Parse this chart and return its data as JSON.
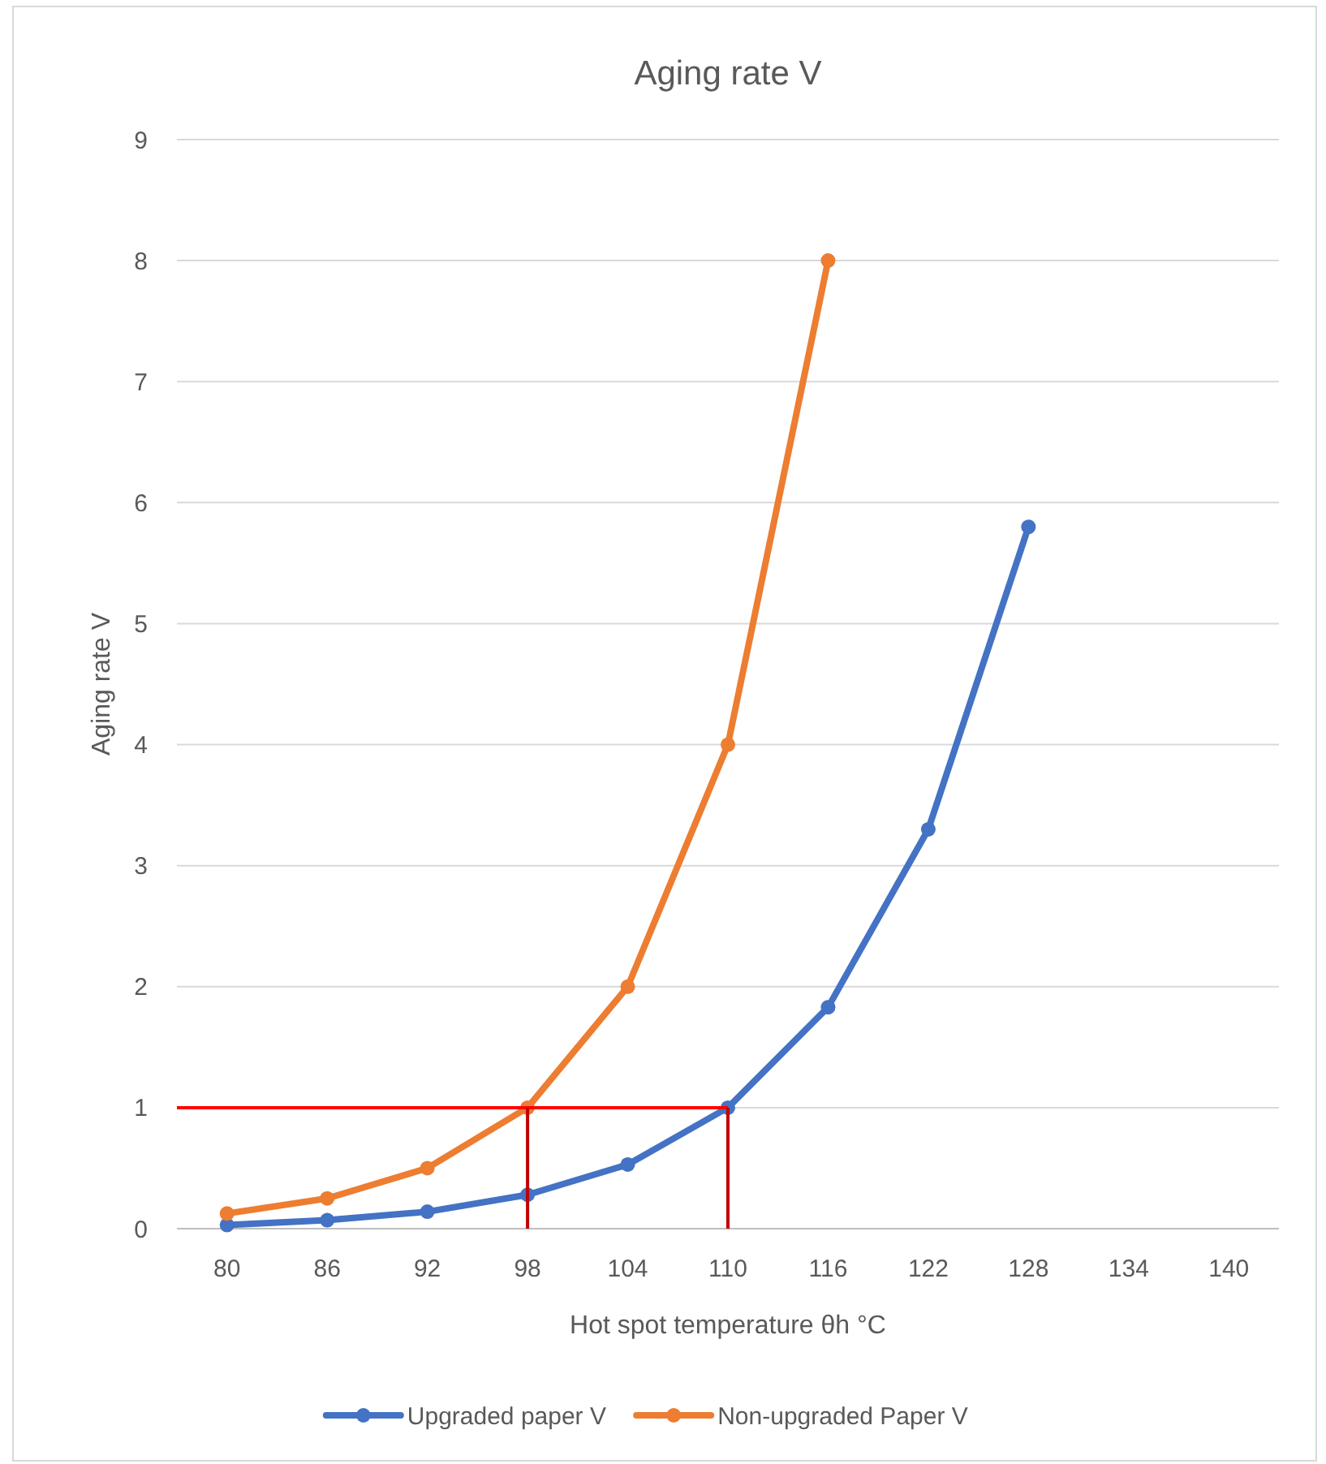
{
  "chart_data": {
    "type": "line",
    "title": "Aging rate V",
    "xlabel": "Hot spot temperature θh °C",
    "ylabel": "Aging rate V",
    "categories": [
      "80",
      "86",
      "92",
      "98",
      "104",
      "110",
      "116",
      "122",
      "128",
      "134",
      "140"
    ],
    "series": [
      {
        "name": "Upgraded paper V",
        "color": "#4472c4",
        "values": [
          0.03,
          0.07,
          0.14,
          0.28,
          0.53,
          1.0,
          1.83,
          3.3,
          5.8,
          null,
          null
        ]
      },
      {
        "name": "Non-upgraded Paper V",
        "color": "#ed7d31",
        "values": [
          0.125,
          0.25,
          0.5,
          1,
          2,
          4,
          8,
          null,
          null,
          null,
          null
        ]
      }
    ],
    "ylim": [
      0,
      9
    ],
    "yticks": [
      0,
      1,
      2,
      3,
      4,
      5,
      6,
      7,
      8,
      9
    ],
    "grid": "y",
    "legend": "bottom",
    "marker": "circle",
    "ref_lines": [
      {
        "axis": "y",
        "value": 1,
        "color": "#ff0000"
      },
      {
        "axis": "x",
        "value": "98",
        "color": "#c00000"
      },
      {
        "axis": "x",
        "value": "110",
        "color": "#c00000"
      }
    ]
  }
}
